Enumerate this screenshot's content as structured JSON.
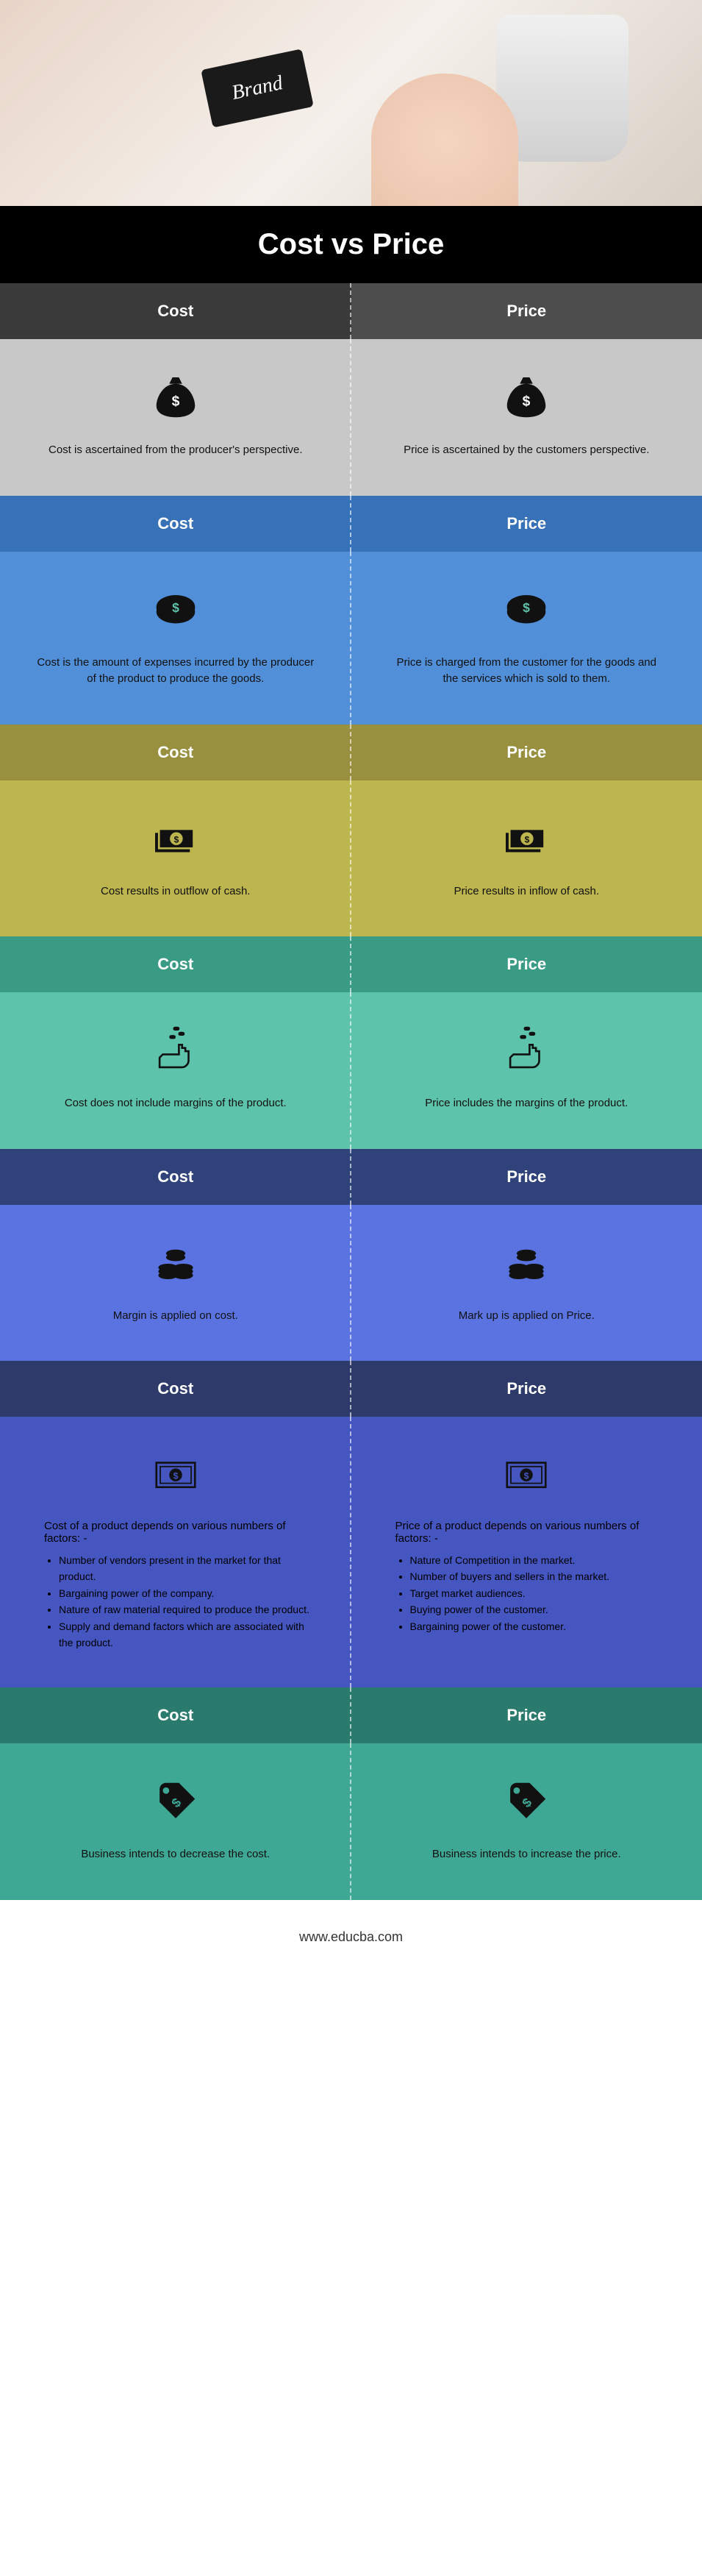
{
  "hero": {
    "brand_text": "Brand"
  },
  "title": "Cost vs Price",
  "footer": "www.educba.com",
  "labels": {
    "cost": "Cost",
    "price": "Price"
  },
  "sections": [
    {
      "header_bg": [
        "h-dark1",
        "h-dark2"
      ],
      "content_bg": [
        "c-gray1",
        "c-gray2"
      ],
      "icon": "moneybag",
      "cost_text": "Cost is ascertained from the producer's perspective.",
      "price_text": "Price is ascertained by the customers perspective."
    },
    {
      "header_bg": [
        "h-blue1",
        "h-blue2"
      ],
      "content_bg": [
        "c-blue1",
        "c-blue2"
      ],
      "icon": "coin",
      "cost_text": "Cost is the amount of expenses incurred by the producer of the product to produce the goods.",
      "price_text": "Price is charged from the customer for the goods and the services which is sold to them."
    },
    {
      "header_bg": [
        "h-olive1",
        "h-olive2"
      ],
      "content_bg": [
        "c-olive1",
        "c-olive2"
      ],
      "icon": "cash",
      "cost_text": "Cost results in outflow of cash.",
      "price_text": "Price results in inflow of cash."
    },
    {
      "header_bg": [
        "h-teal1",
        "h-teal2"
      ],
      "content_bg": [
        "c-teal1",
        "c-teal2"
      ],
      "icon": "hand",
      "cost_text": "Cost does not include margins of the product.",
      "price_text": "Price includes the margins of the product."
    },
    {
      "header_bg": [
        "h-navy1",
        "h-navy2"
      ],
      "content_bg": [
        "c-navy1",
        "c-navy2"
      ],
      "icon": "stack",
      "cost_text": "Margin is applied on cost.",
      "price_text": "Mark up is applied on Price."
    },
    {
      "header_bg": [
        "h-indigo1",
        "h-indigo2"
      ],
      "content_bg": [
        "c-indigo1",
        "c-indigo2"
      ],
      "icon": "bill",
      "list": true,
      "cost_title": "Cost of a product depends on various numbers of factors: -",
      "cost_items": [
        "Number of vendors present in the market for that product.",
        "Bargaining power of the company.",
        "Nature of raw material required to produce the product.",
        "Supply and demand factors which are associated with the product."
      ],
      "price_title": "Price of a product depends on various numbers of factors: -",
      "price_items": [
        "Nature of Competition in the market.",
        "Number of buyers and sellers in the market.",
        "Target market audiences.",
        "Buying power of the customer.",
        "Bargaining power of the customer."
      ]
    },
    {
      "header_bg": [
        "h-tealdk1",
        "h-tealdk2"
      ],
      "content_bg": [
        "c-tealdk1",
        "c-tealdk2"
      ],
      "icon": "pricetag",
      "cost_text": "Business intends to decrease the cost.",
      "price_text": "Business intends to increase the price."
    }
  ],
  "icons": {
    "moneybag": "<path d='M35 8 L45 8 L50 18 L30 18 Z M40 18 C20 18 10 40 10 52 C10 65 25 70 40 70 C55 70 70 65 70 52 C70 40 60 18 40 18 Z' fill='#111'/><text x='40' y='52' font-size='22' fill='#fff' text-anchor='middle' font-weight='bold'>$</text>",
    "coin": "<ellipse cx='40' cy='42' rx='30' ry='18' fill='#111'/><ellipse cx='40' cy='36' rx='30' ry='18' fill='#111' stroke='#5a8' stroke-width='0'/><ellipse cx='40' cy='34' rx='30' ry='18' fill='#111'/><text x='40' y='42' font-size='20' fill='#5ec3ab' text-anchor='middle' font-weight='bold'>$</text>",
    "cash": "<rect x='8' y='30' width='54' height='30' fill='#111'/><rect x='14' y='24' width='54' height='30' fill='#111' stroke='#bdb54d' stroke-width='3'/><circle cx='41' cy='39' r='10' fill='#bdb54d'/><text x='41' y='45' font-size='14' fill='#111' text-anchor='middle' font-weight='bold'>$</text>",
    "hand": "<path d='M15 50 L15 65 L50 65 C55 65 60 60 60 55 L60 40 L55 40 L55 35 L50 35 L50 30 L45 30 L45 45 L20 45 Z' fill='none' stroke='#111' stroke-width='3'/><rect x='30' y='15' width='10' height='6' rx='3' fill='#111'/><rect x='44' y='10' width='10' height='6' rx='3' fill='#111'/><rect x='36' y='2' width='10' height='6' rx='3' fill='#111'/>",
    "stack": "<ellipse cx='28' cy='58' rx='15' ry='6' fill='#111'/><ellipse cx='28' cy='52' rx='15' ry='6' fill='#111'/><ellipse cx='28' cy='46' rx='15' ry='6' fill='#111'/><ellipse cx='52' cy='58' rx='15' ry='6' fill='#111'/><ellipse cx='52' cy='52' rx='15' ry='6' fill='#111'/><ellipse cx='52' cy='46' rx='15' ry='6' fill='#111'/><ellipse cx='40' cy='30' rx='15' ry='6' fill='#111'/><ellipse cx='40' cy='24' rx='15' ry='6' fill='#111'/>",
    "bill": "<rect x='10' y='20' width='60' height='38' fill='none' stroke='#111' stroke-width='3'/><rect x='16' y='26' width='48' height='26' fill='none' stroke='#111' stroke-width='2'/><circle cx='40' cy='39' r='10' fill='#111'/><text x='40' y='45' font-size='14' fill='#4556c0' text-anchor='middle' font-weight='bold'>$</text>",
    "pricetag": "<path d='M45 10 L70 35 L40 65 L15 40 L15 20 C15 14 20 10 25 10 Z' fill='#111'/><circle cx='25' cy='22' r='5' fill='#3ea895'/><text x='40' y='48' font-size='20' fill='#3ea895' text-anchor='middle' font-weight='bold' transform='rotate(-45 40 40)'>$</text>"
  }
}
